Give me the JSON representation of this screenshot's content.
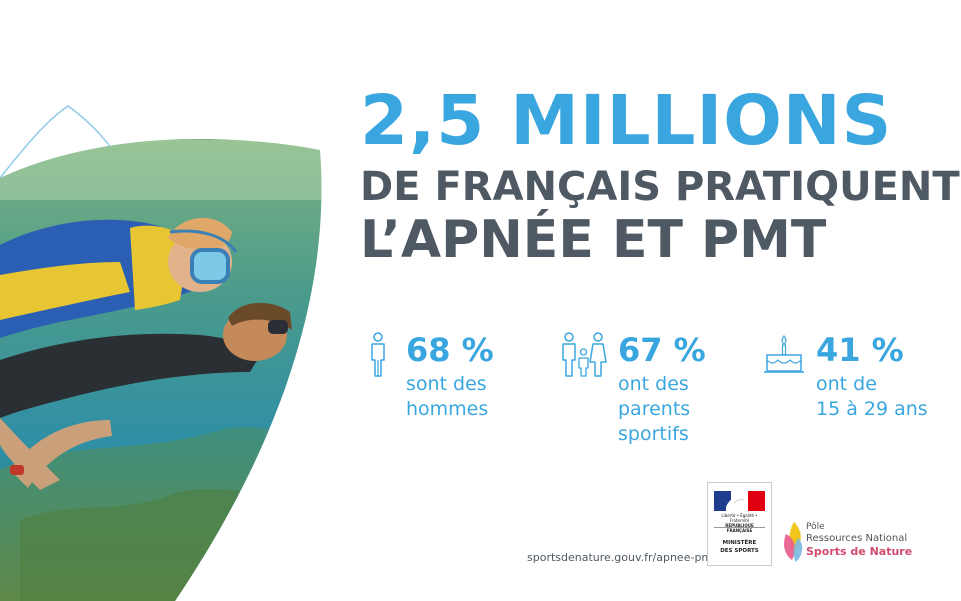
{
  "headline": {
    "line1": "2,5 MILLIONS",
    "line2": "DE FRANÇAIS PRATIQUENT",
    "line3": "L’APNÉE ET PMT"
  },
  "stats": [
    {
      "icon": "man-icon",
      "value": "68 %",
      "lines": [
        "sont des",
        "hommes"
      ]
    },
    {
      "icon": "family-icon",
      "value": "67 %",
      "lines": [
        "ont des",
        "parents",
        "sportifs"
      ]
    },
    {
      "icon": "birthday-cake-icon",
      "value": "41 %",
      "lines": [
        "ont de",
        "15 à 29 ans"
      ]
    }
  ],
  "footer": {
    "url": "sportsdenature.gouv.fr/apnee-pmt",
    "ministry_logo": {
      "republic_lines": [
        "Liberté • Égalité • Fraternité",
        "RÉPUBLIQUE FRANÇAISE"
      ],
      "name_lines": [
        "MINISTÈRE",
        "DES SPORTS"
      ]
    },
    "pole_logo": {
      "line1": "Pôle",
      "line2": "Ressources National",
      "line3": "Sports de Nature"
    }
  },
  "colors": {
    "accent_blue": "#3aa6df",
    "dark_gray": "#4f5963",
    "pole_pink": "#d04b6e"
  }
}
